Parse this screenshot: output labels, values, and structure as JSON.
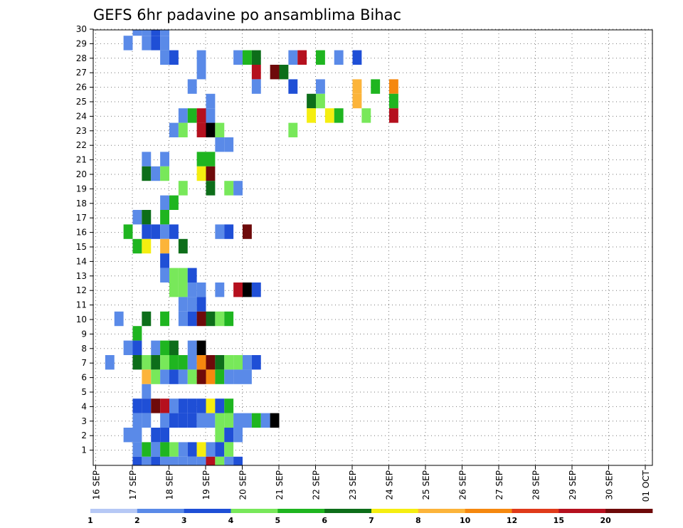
{
  "chart_data": {
    "type": "heatmap",
    "title": "GEFS 6hr padavine po ansamblima Bihac",
    "x_start": "16 SEP",
    "time_step_hours": 6,
    "x_tick_labels": [
      "16 SEP",
      "17 SEP",
      "18 SEP",
      "19 SEP",
      "20 SEP",
      "21 SEP",
      "22 SEP",
      "23 SEP",
      "24 SEP",
      "25 SEP",
      "26 SEP",
      "27 SEP",
      "28 SEP",
      "29 SEP",
      "30 SEP",
      "01 OCT"
    ],
    "y_tick_labels": [
      "1",
      "2",
      "3",
      "4",
      "5",
      "6",
      "7",
      "8",
      "9",
      "10",
      "11",
      "12",
      "13",
      "14",
      "15",
      "16",
      "17",
      "18",
      "19",
      "20",
      "21",
      "22",
      "23",
      "24",
      "25",
      "26",
      "27",
      "28",
      "29",
      "30"
    ],
    "grid": true,
    "colorbar": {
      "position": "bottom",
      "labels": [
        "1",
        "2",
        "3",
        "4",
        "5",
        "6",
        "7",
        "8",
        "10",
        "12",
        "15",
        "20"
      ],
      "colors": [
        "#b6c8f5",
        "#5a8ae8",
        "#1f4fd6",
        "#78e85a",
        "#1fb520",
        "#0d6e1a",
        "#f5ee10",
        "#fcb43a",
        "#f5880f",
        "#e03a1a",
        "#b5101e",
        "#6e0a0a"
      ]
    },
    "cells": [
      [
        30,
        3,
        1
      ],
      [
        30,
        4,
        1
      ],
      [
        30,
        5,
        2
      ],
      [
        30,
        6,
        1
      ],
      [
        29,
        2,
        1
      ],
      [
        29,
        4,
        1
      ],
      [
        29,
        5,
        2
      ],
      [
        29,
        6,
        1
      ],
      [
        28,
        6,
        1
      ],
      [
        28,
        7,
        2
      ],
      [
        28,
        10,
        1
      ],
      [
        28,
        14,
        1
      ],
      [
        28,
        15,
        4
      ],
      [
        28,
        16,
        5
      ],
      [
        28,
        20,
        1
      ],
      [
        28,
        21,
        10
      ],
      [
        28,
        23,
        4
      ],
      [
        28,
        25,
        1
      ],
      [
        28,
        27,
        2
      ],
      [
        27,
        10,
        1
      ],
      [
        27,
        16,
        10
      ],
      [
        27,
        18,
        11
      ],
      [
        27,
        19,
        5
      ],
      [
        26,
        9,
        1
      ],
      [
        26,
        16,
        1
      ],
      [
        26,
        20,
        2
      ],
      [
        26,
        23,
        1
      ],
      [
        26,
        27,
        7
      ],
      [
        26,
        29,
        4
      ],
      [
        26,
        31,
        8
      ],
      [
        25,
        11,
        1
      ],
      [
        25,
        22,
        5
      ],
      [
        25,
        23,
        3
      ],
      [
        25,
        27,
        7
      ],
      [
        25,
        31,
        4
      ],
      [
        24,
        8,
        1
      ],
      [
        24,
        9,
        4
      ],
      [
        24,
        10,
        10
      ],
      [
        24,
        11,
        1
      ],
      [
        24,
        22,
        6
      ],
      [
        24,
        24,
        6
      ],
      [
        24,
        25,
        4
      ],
      [
        24,
        28,
        3
      ],
      [
        24,
        31,
        10
      ],
      [
        23,
        7,
        1
      ],
      [
        23,
        8,
        3
      ],
      [
        23,
        10,
        10
      ],
      [
        23,
        11,
        12
      ],
      [
        23,
        12,
        3
      ],
      [
        23,
        20,
        3
      ],
      [
        22,
        12,
        1
      ],
      [
        22,
        13,
        1
      ],
      [
        21,
        4,
        1
      ],
      [
        21,
        6,
        1
      ],
      [
        21,
        10,
        4
      ],
      [
        21,
        11,
        4
      ],
      [
        20,
        4,
        5
      ],
      [
        20,
        5,
        1
      ],
      [
        20,
        6,
        3
      ],
      [
        20,
        10,
        6
      ],
      [
        20,
        11,
        11
      ],
      [
        19,
        8,
        3
      ],
      [
        19,
        11,
        5
      ],
      [
        19,
        13,
        3
      ],
      [
        19,
        14,
        1
      ],
      [
        18,
        6,
        1
      ],
      [
        18,
        7,
        4
      ],
      [
        17,
        3,
        1
      ],
      [
        17,
        4,
        5
      ],
      [
        17,
        6,
        4
      ],
      [
        16,
        2,
        4
      ],
      [
        16,
        4,
        2
      ],
      [
        16,
        5,
        2
      ],
      [
        16,
        6,
        1
      ],
      [
        16,
        7,
        2
      ],
      [
        16,
        12,
        1
      ],
      [
        16,
        13,
        2
      ],
      [
        16,
        15,
        11
      ],
      [
        15,
        3,
        4
      ],
      [
        15,
        4,
        6
      ],
      [
        15,
        6,
        7
      ],
      [
        15,
        8,
        5
      ],
      [
        14,
        6,
        2
      ],
      [
        13,
        6,
        1
      ],
      [
        13,
        7,
        3
      ],
      [
        13,
        8,
        3
      ],
      [
        13,
        9,
        2
      ],
      [
        12,
        7,
        3
      ],
      [
        12,
        8,
        3
      ],
      [
        12,
        9,
        1
      ],
      [
        12,
        10,
        1
      ],
      [
        12,
        12,
        1
      ],
      [
        12,
        14,
        10
      ],
      [
        12,
        15,
        12
      ],
      [
        12,
        16,
        2
      ],
      [
        11,
        8,
        1
      ],
      [
        11,
        9,
        1
      ],
      [
        11,
        10,
        2
      ],
      [
        10,
        1,
        1
      ],
      [
        10,
        4,
        5
      ],
      [
        10,
        6,
        4
      ],
      [
        10,
        8,
        1
      ],
      [
        10,
        9,
        2
      ],
      [
        10,
        10,
        11
      ],
      [
        10,
        11,
        5
      ],
      [
        10,
        12,
        3
      ],
      [
        10,
        13,
        4
      ],
      [
        9,
        3,
        4
      ],
      [
        8,
        2,
        1
      ],
      [
        8,
        3,
        2
      ],
      [
        8,
        5,
        1
      ],
      [
        8,
        6,
        4
      ],
      [
        8,
        7,
        5
      ],
      [
        8,
        9,
        1
      ],
      [
        8,
        10,
        12
      ],
      [
        7,
        0,
        1
      ],
      [
        7,
        3,
        5
      ],
      [
        7,
        4,
        3
      ],
      [
        7,
        5,
        5
      ],
      [
        7,
        6,
        3
      ],
      [
        7,
        7,
        4
      ],
      [
        7,
        8,
        4
      ],
      [
        7,
        9,
        1
      ],
      [
        7,
        10,
        8
      ],
      [
        7,
        11,
        11
      ],
      [
        7,
        12,
        5
      ],
      [
        7,
        13,
        3
      ],
      [
        7,
        14,
        3
      ],
      [
        7,
        15,
        1
      ],
      [
        7,
        16,
        2
      ],
      [
        6,
        4,
        7
      ],
      [
        6,
        5,
        3
      ],
      [
        6,
        6,
        1
      ],
      [
        6,
        7,
        2
      ],
      [
        6,
        8,
        1
      ],
      [
        6,
        9,
        3
      ],
      [
        6,
        10,
        11
      ],
      [
        6,
        11,
        8
      ],
      [
        6,
        12,
        4
      ],
      [
        6,
        13,
        1
      ],
      [
        6,
        14,
        1
      ],
      [
        6,
        15,
        1
      ],
      [
        5,
        4,
        1
      ],
      [
        4,
        3,
        2
      ],
      [
        4,
        4,
        2
      ],
      [
        4,
        5,
        11
      ],
      [
        4,
        6,
        10
      ],
      [
        4,
        7,
        1
      ],
      [
        4,
        8,
        2
      ],
      [
        4,
        9,
        2
      ],
      [
        4,
        10,
        2
      ],
      [
        4,
        11,
        6
      ],
      [
        4,
        12,
        2
      ],
      [
        4,
        13,
        4
      ],
      [
        3,
        3,
        1
      ],
      [
        3,
        4,
        1
      ],
      [
        3,
        6,
        1
      ],
      [
        3,
        7,
        2
      ],
      [
        3,
        8,
        2
      ],
      [
        3,
        9,
        2
      ],
      [
        3,
        10,
        1
      ],
      [
        3,
        11,
        1
      ],
      [
        3,
        12,
        3
      ],
      [
        3,
        13,
        3
      ],
      [
        3,
        14,
        1
      ],
      [
        3,
        15,
        1
      ],
      [
        3,
        16,
        4
      ],
      [
        3,
        17,
        1
      ],
      [
        3,
        18,
        12
      ],
      [
        2,
        2,
        1
      ],
      [
        2,
        3,
        1
      ],
      [
        2,
        5,
        2
      ],
      [
        2,
        6,
        2
      ],
      [
        2,
        12,
        3
      ],
      [
        2,
        13,
        2
      ],
      [
        2,
        14,
        1
      ],
      [
        1,
        3,
        1
      ],
      [
        1,
        4,
        4
      ],
      [
        1,
        5,
        1
      ],
      [
        1,
        6,
        4
      ],
      [
        1,
        7,
        3
      ],
      [
        1,
        8,
        1
      ],
      [
        1,
        9,
        2
      ],
      [
        1,
        10,
        6
      ],
      [
        1,
        11,
        1
      ],
      [
        1,
        12,
        2
      ],
      [
        1,
        13,
        3
      ],
      [
        0,
        3,
        2
      ],
      [
        0,
        4,
        1
      ],
      [
        0,
        5,
        2
      ],
      [
        0,
        6,
        1
      ],
      [
        0,
        7,
        1
      ],
      [
        0,
        8,
        1
      ],
      [
        0,
        9,
        1
      ],
      [
        0,
        10,
        1
      ],
      [
        0,
        11,
        10
      ],
      [
        0,
        12,
        3
      ],
      [
        0,
        13,
        1
      ],
      [
        0,
        14,
        2
      ]
    ]
  }
}
